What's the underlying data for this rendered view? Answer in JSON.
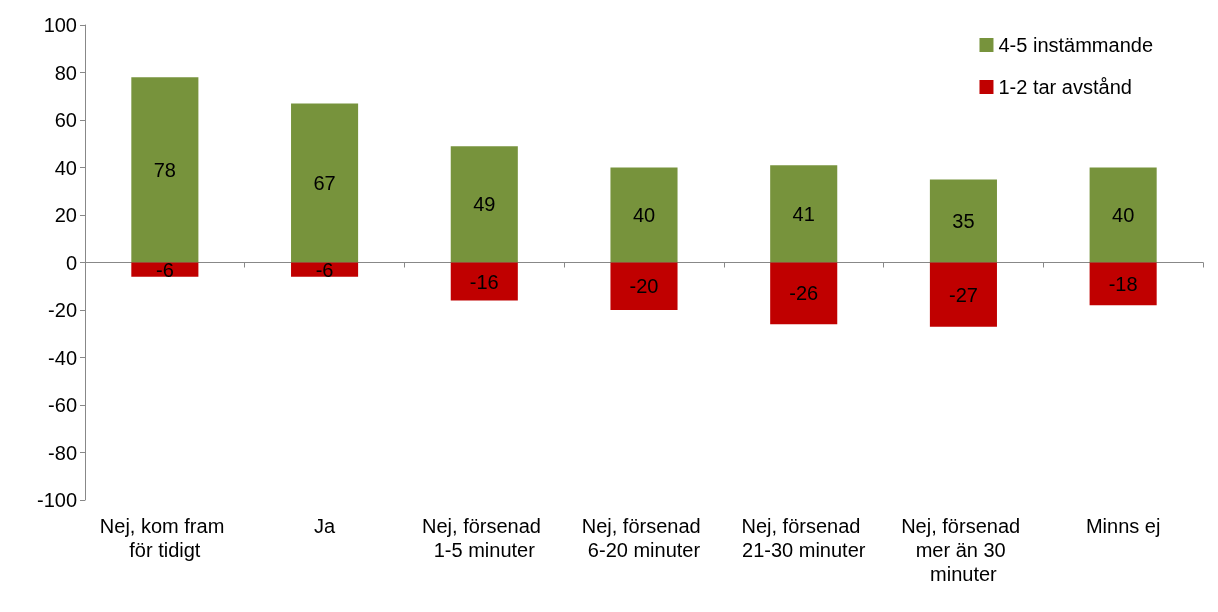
{
  "chart_data": {
    "type": "bar",
    "stacked": true,
    "categories": [
      "Nej, kom fram för tidigt",
      "Ja",
      "Nej, försenad 1-5 minuter",
      "Nej, försenad 6-20 minuter",
      "Nej, försenad 21-30 minuter",
      "Nej, försenad mer än 30 minuter",
      "Minns ej"
    ],
    "series": [
      {
        "name": "4-5 instämmande",
        "color": "#77933c",
        "values": [
          78,
          67,
          49,
          40,
          41,
          35,
          40
        ]
      },
      {
        "name": "1-2 tar avstånd",
        "color": "#c00000",
        "values": [
          -6,
          -6,
          -16,
          -20,
          -26,
          -27,
          -18
        ]
      }
    ],
    "ylim": [
      -100,
      100
    ],
    "yticks": [
      -100,
      -80,
      -60,
      -40,
      -20,
      0,
      20,
      40,
      60,
      80,
      100
    ],
    "legend": "top right",
    "data_labels": true
  }
}
